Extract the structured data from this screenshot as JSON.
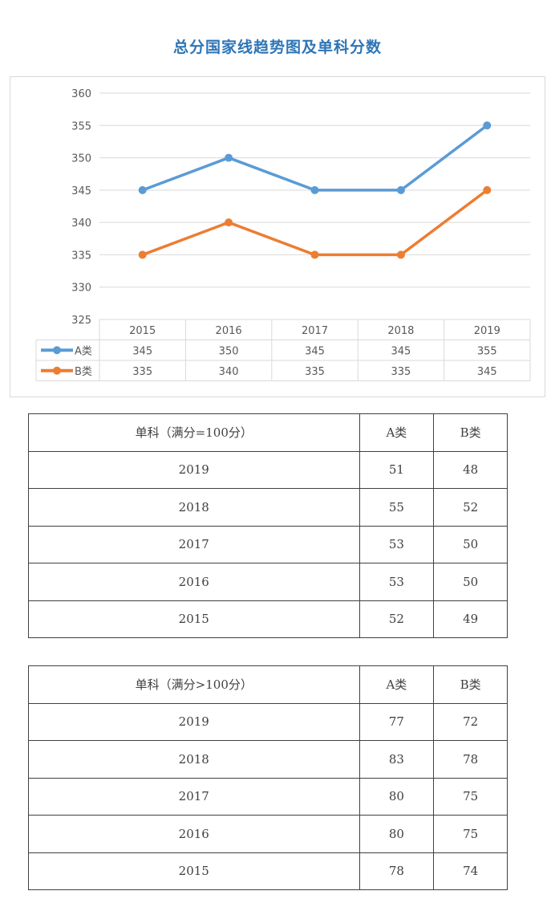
{
  "page": {
    "title": "总分国家线趋势图及单科分数"
  },
  "chart_data": {
    "type": "line",
    "categories": [
      "2015",
      "2016",
      "2017",
      "2018",
      "2019"
    ],
    "series": [
      {
        "name": "A类",
        "values": [
          345,
          350,
          345,
          345,
          355
        ],
        "color": "#5b9bd5"
      },
      {
        "name": "B类",
        "values": [
          335,
          340,
          335,
          335,
          345
        ],
        "color": "#ed7d31"
      }
    ],
    "ylim": [
      325,
      360
    ],
    "yticks": [
      325,
      330,
      335,
      340,
      345,
      350,
      355,
      360
    ],
    "grid": true,
    "legend": "data-table-below",
    "data_table": true
  },
  "tables": [
    {
      "headers": [
        "单科（满分=100分）",
        "A类",
        "B类"
      ],
      "rows": [
        [
          "2019",
          "51",
          "48"
        ],
        [
          "2018",
          "55",
          "52"
        ],
        [
          "2017",
          "53",
          "50"
        ],
        [
          "2016",
          "53",
          "50"
        ],
        [
          "2015",
          "52",
          "49"
        ]
      ]
    },
    {
      "headers": [
        "单科（满分>100分）",
        "A类",
        "B类"
      ],
      "rows": [
        [
          "2019",
          "77",
          "72"
        ],
        [
          "2018",
          "83",
          "78"
        ],
        [
          "2017",
          "80",
          "75"
        ],
        [
          "2016",
          "80",
          "75"
        ],
        [
          "2015",
          "78",
          "74"
        ]
      ]
    }
  ]
}
